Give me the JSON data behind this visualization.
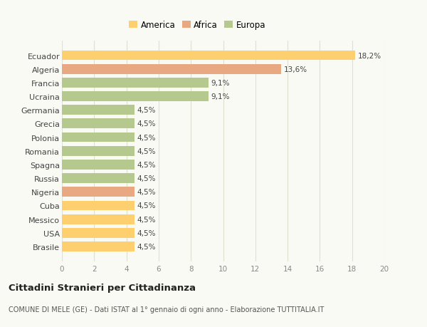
{
  "countries": [
    "Ecuador",
    "Algeria",
    "Francia",
    "Ucraina",
    "Germania",
    "Grecia",
    "Polonia",
    "Romania",
    "Spagna",
    "Russia",
    "Nigeria",
    "Cuba",
    "Messico",
    "USA",
    "Brasile"
  ],
  "values": [
    18.2,
    13.6,
    9.1,
    9.1,
    4.5,
    4.5,
    4.5,
    4.5,
    4.5,
    4.5,
    4.5,
    4.5,
    4.5,
    4.5,
    4.5
  ],
  "labels": [
    "18,2%",
    "13,6%",
    "9,1%",
    "9,1%",
    "4,5%",
    "4,5%",
    "4,5%",
    "4,5%",
    "4,5%",
    "4,5%",
    "4,5%",
    "4,5%",
    "4,5%",
    "4,5%",
    "4,5%"
  ],
  "colors": [
    "#FDCF6F",
    "#E8A882",
    "#B5C98E",
    "#B5C98E",
    "#B5C98E",
    "#B5C98E",
    "#B5C98E",
    "#B5C98E",
    "#B5C98E",
    "#B5C98E",
    "#E8A882",
    "#FDCF6F",
    "#FDCF6F",
    "#FDCF6F",
    "#FDCF6F"
  ],
  "legend_labels": [
    "America",
    "Africa",
    "Europa"
  ],
  "legend_colors": [
    "#FDCF6F",
    "#E8A882",
    "#B5C98E"
  ],
  "xlim": [
    0,
    20
  ],
  "xticks": [
    0,
    2,
    4,
    6,
    8,
    10,
    12,
    14,
    16,
    18,
    20
  ],
  "title": "Cittadini Stranieri per Cittadinanza",
  "subtitle": "COMUNE DI MELE (GE) - Dati ISTAT al 1° gennaio di ogni anno - Elaborazione TUTTITALIA.IT",
  "bg_color": "#FAFAF5",
  "bar_height": 0.72,
  "grid_color": "#E0E0D0",
  "label_fontsize": 7.5,
  "ytick_fontsize": 8.0,
  "xtick_fontsize": 7.5
}
